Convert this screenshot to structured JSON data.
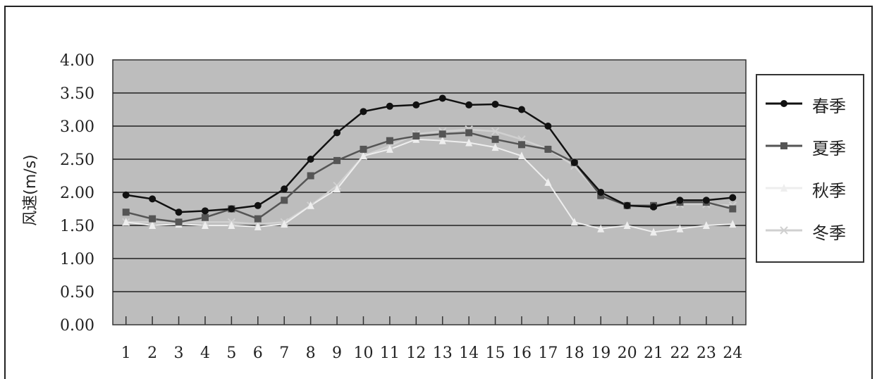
{
  "chart_data": {
    "type": "line",
    "title": "",
    "xlabel": "",
    "ylabel": "风速(m/s)",
    "x": [
      1,
      2,
      3,
      4,
      5,
      6,
      7,
      8,
      9,
      10,
      11,
      12,
      13,
      14,
      15,
      16,
      17,
      18,
      19,
      20,
      21,
      22,
      23,
      24
    ],
    "x_tick_labels": [
      "1",
      "2",
      "3",
      "4",
      "5",
      "6",
      "7",
      "8",
      "9",
      "10",
      "11",
      "12",
      "13",
      "14",
      "15",
      "16",
      "17",
      "18",
      "19",
      "20",
      "21",
      "22",
      "23",
      "24"
    ],
    "y_tick_labels": [
      "0.00",
      "0.50",
      "1.00",
      "1.50",
      "2.00",
      "2.50",
      "3.00",
      "3.50",
      "4.00"
    ],
    "ylim": [
      0,
      4
    ],
    "grid": true,
    "legend_position": "right",
    "plot_background": "#bdbdbd",
    "series": [
      {
        "name": "春季",
        "color": "#111111",
        "marker": "circle",
        "values": [
          1.96,
          1.9,
          1.7,
          1.72,
          1.75,
          1.8,
          2.05,
          2.5,
          2.9,
          3.22,
          3.3,
          3.32,
          3.42,
          3.32,
          3.33,
          3.25,
          3.0,
          2.45,
          2.0,
          1.8,
          1.78,
          1.88,
          1.88,
          1.92
        ]
      },
      {
        "name": "夏季",
        "color": "#555555",
        "marker": "square",
        "values": [
          1.7,
          1.6,
          1.55,
          1.62,
          1.75,
          1.6,
          1.88,
          2.25,
          2.48,
          2.65,
          2.78,
          2.85,
          2.88,
          2.9,
          2.8,
          2.72,
          2.65,
          2.45,
          1.95,
          1.8,
          1.8,
          1.85,
          1.85,
          1.75
        ]
      },
      {
        "name": "秋季",
        "color": "#eeeeee",
        "marker": "triangle",
        "values": [
          1.55,
          1.5,
          1.52,
          1.5,
          1.5,
          1.48,
          1.52,
          1.8,
          2.05,
          2.55,
          2.65,
          2.8,
          2.78,
          2.75,
          2.68,
          2.55,
          2.15,
          1.55,
          1.45,
          1.5,
          1.4,
          1.45,
          1.5,
          1.52
        ]
      },
      {
        "name": "冬季",
        "color": "#d0d0d0",
        "marker": "x",
        "values": [
          1.55,
          1.55,
          1.55,
          1.55,
          1.55,
          1.52,
          1.55,
          1.8,
          2.1,
          2.55,
          2.7,
          2.88,
          2.92,
          2.95,
          2.92,
          2.8,
          2.65,
          2.4,
          1.95,
          1.8,
          1.8,
          1.82,
          1.82,
          1.8
        ]
      }
    ]
  }
}
